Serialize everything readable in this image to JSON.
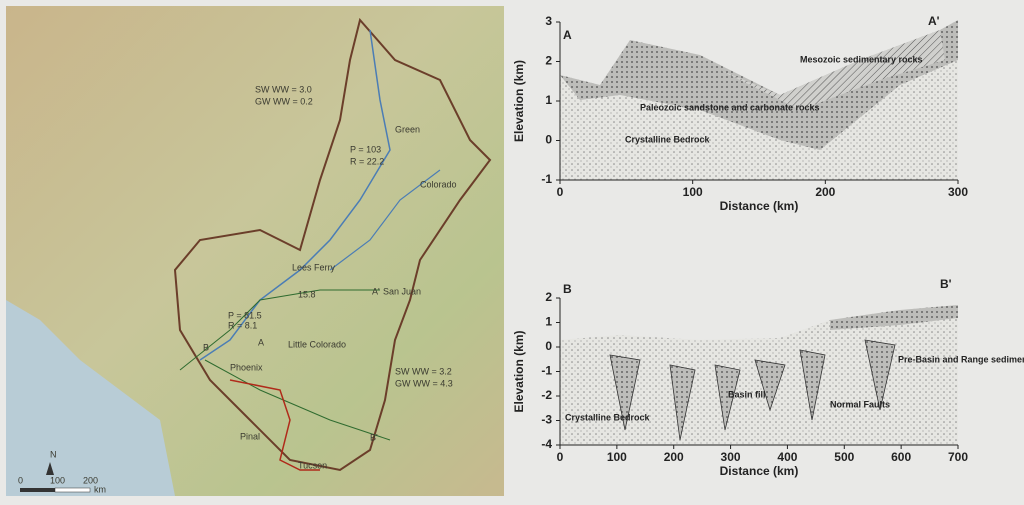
{
  "map": {
    "labels": {
      "sw_upper": "SW WW = 3.0",
      "gw_upper": "GW WW = 0.2",
      "p_upper": "P = 103",
      "r_upper": "R = 22.2",
      "lees_ferry": "Lees Ferry",
      "lees_value": "15.8",
      "a_prime": "A'",
      "san_juan": "San Juan",
      "p_lower": "P = 81.5",
      "r_lower": "R = 8.1",
      "b": "B",
      "a": "A",
      "phoenix": "Phoenix",
      "pinal": "Pinal",
      "tucson": "Tucson",
      "sw_lower": "SW WW = 3.2",
      "gw_lower": "GW WW = 4.3",
      "b_prime": "B'",
      "green": "Green",
      "colorado": "Colorado",
      "little_colorado": "Little Colorado",
      "north": "N"
    },
    "scale": {
      "ticks": [
        "0",
        "100",
        "200"
      ],
      "unit": "km"
    }
  },
  "section_a": {
    "start": "A",
    "end": "A'",
    "xlabel": "Distance (km)",
    "ylabel": "Elevation (km)",
    "xlim": [
      0,
      300
    ],
    "ylim": [
      -1,
      3
    ],
    "xticks": [
      0,
      100,
      200,
      300
    ],
    "yticks": [
      -1,
      0,
      1,
      2,
      3
    ],
    "units": [
      "Mesozoic sedimentary rocks",
      "Paleozoic sandstone and carbonate rocks",
      "Crystalline Bedrock"
    ]
  },
  "section_b": {
    "start": "B",
    "end": "B'",
    "xlabel": "Distance (km)",
    "ylabel": "Elevation (km)",
    "xlim": [
      0,
      700
    ],
    "ylim": [
      -4,
      2
    ],
    "xticks": [
      0,
      100,
      200,
      300,
      400,
      500,
      600,
      700
    ],
    "yticks": [
      -4,
      -3,
      -2,
      -1,
      0,
      1,
      2
    ],
    "units": [
      "Crystalline Bedrock",
      "Basin fill",
      "Normal Faults",
      "Pre-Basin and Range sedimentary and volcanic rocks"
    ]
  }
}
